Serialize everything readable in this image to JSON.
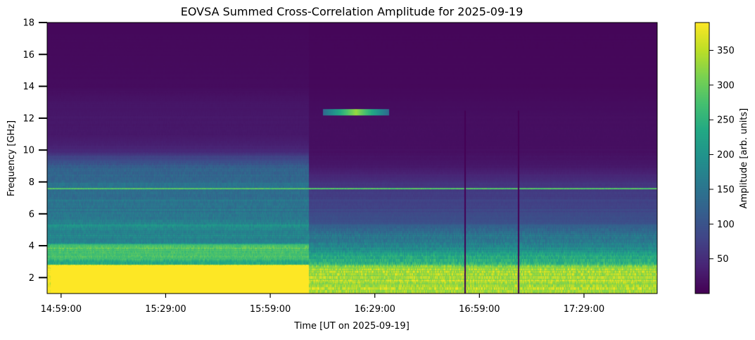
{
  "chart_data": {
    "type": "heatmap",
    "title": "EOVSA Summed Cross-Correlation Amplitude for 2025-09-19",
    "xlabel": "Time [UT on 2025-09-19]",
    "ylabel": "Frequency [GHz]",
    "x_range_utc": [
      "14:55:00",
      "17:50:00"
    ],
    "x_ticks": [
      {
        "label": "14:59:00",
        "minutes": 4
      },
      {
        "label": "15:29:00",
        "minutes": 34
      },
      {
        "label": "15:59:00",
        "minutes": 64
      },
      {
        "label": "16:29:00",
        "minutes": 94
      },
      {
        "label": "16:59:00",
        "minutes": 124
      },
      {
        "label": "17:29:00",
        "minutes": 154
      }
    ],
    "x_span_minutes": 175,
    "ylim": [
      1,
      18
    ],
    "y_ticks": [
      2,
      4,
      6,
      8,
      10,
      12,
      14,
      16,
      18
    ],
    "colorbar": {
      "label": "Amplitude [arb. units]",
      "range": [
        0,
        390
      ],
      "ticks": [
        50,
        100,
        150,
        200,
        250,
        300,
        350
      ],
      "colormap": "viridis"
    },
    "features": [
      {
        "name": "saturated low-frequency band",
        "t_start_min": 1,
        "t_end_min": 75,
        "f_min": 1,
        "f_max": 2.8,
        "value": 390
      },
      {
        "name": "strong low band after switch",
        "t_start_min": 75,
        "t_end_min": 175,
        "f_min": 1,
        "f_max": 2.7,
        "value": 330
      },
      {
        "name": "4 GHz enhancement",
        "t_start_min": 1,
        "t_end_min": 75,
        "f_min": 3.2,
        "f_max": 4.1,
        "value": 280
      },
      {
        "name": "RFI line 7.6 GHz",
        "t_start_min": 0,
        "t_end_min": 175,
        "f_min": 7.55,
        "f_max": 7.65,
        "value": 300
      },
      {
        "name": "burst 12.4 GHz",
        "t_start_min": 79,
        "t_end_min": 98,
        "f_min": 12.2,
        "f_max": 12.6,
        "value": 330
      },
      {
        "name": "data gap",
        "t_start_min": 119.5,
        "t_end_min": 119.8,
        "f_min": 1,
        "f_max": 12.5,
        "value": 0
      },
      {
        "name": "data gap",
        "t_start_min": 135,
        "t_end_min": 135.2,
        "f_min": 1,
        "f_max": 12.5,
        "value": 0
      }
    ],
    "spectra": [
      {
        "period": "before 16:10 UT",
        "points": [
          [
            1.0,
            390
          ],
          [
            2.8,
            390
          ],
          [
            2.85,
            250
          ],
          [
            3.0,
            230
          ],
          [
            3.3,
            270
          ],
          [
            3.6,
            260
          ],
          [
            4.0,
            285
          ],
          [
            4.2,
            180
          ],
          [
            4.8,
            165
          ],
          [
            5.3,
            185
          ],
          [
            5.8,
            150
          ],
          [
            6.5,
            150
          ],
          [
            7.0,
            140
          ],
          [
            7.4,
            135
          ],
          [
            7.8,
            150
          ],
          [
            8.0,
            135
          ],
          [
            8.8,
            125
          ],
          [
            9.5,
            80
          ],
          [
            10.0,
            40
          ],
          [
            11.0,
            25
          ],
          [
            12.0,
            25
          ],
          [
            13.0,
            22
          ],
          [
            14.0,
            12
          ],
          [
            18.0,
            8
          ]
        ]
      },
      {
        "period": "after 16:10 UT",
        "points": [
          [
            1.0,
            330
          ],
          [
            2.6,
            330
          ],
          [
            2.75,
            300
          ],
          [
            3.0,
            240
          ],
          [
            3.4,
            230
          ],
          [
            3.8,
            185
          ],
          [
            4.3,
            160
          ],
          [
            5.0,
            130
          ],
          [
            5.5,
            95
          ],
          [
            6.0,
            85
          ],
          [
            7.0,
            70
          ],
          [
            7.5,
            65
          ],
          [
            8.0,
            55
          ],
          [
            9.0,
            25
          ],
          [
            10.0,
            15
          ],
          [
            12.0,
            15
          ],
          [
            13.0,
            12
          ],
          [
            14.0,
            8
          ],
          [
            18.0,
            6
          ]
        ]
      }
    ],
    "vertical_fine_structure": [
      {
        "t_start_min": 0,
        "t_end_min": 75,
        "f_min": 1,
        "f_max": 9.3,
        "modulation": 0.09
      },
      {
        "t_start_min": 75,
        "t_end_min": 175,
        "f_min": 1,
        "f_max": 5.2,
        "modulation": 0.12
      },
      {
        "t_start_min": 0,
        "t_end_min": 175,
        "f_min": 9.3,
        "f_max": 18,
        "modulation": 0.05
      }
    ]
  }
}
